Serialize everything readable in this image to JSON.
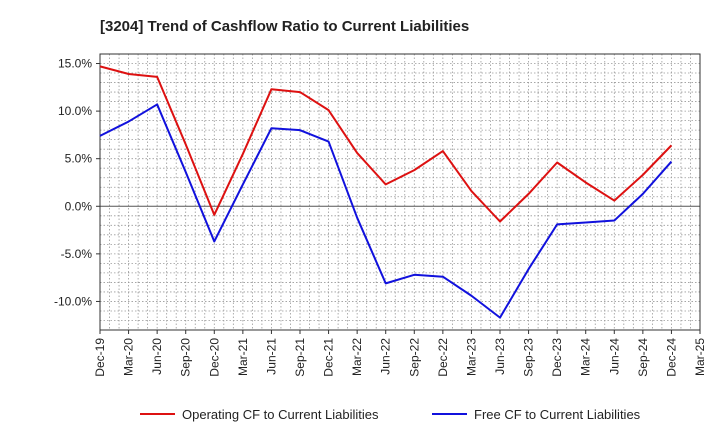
{
  "chart_data": {
    "type": "line",
    "title": "[3204]  Trend of Cashflow Ratio to Current Liabilities",
    "xlabel": "",
    "ylabel": "",
    "categories": [
      "Dec-19",
      "Mar-20",
      "Jun-20",
      "Sep-20",
      "Dec-20",
      "Mar-21",
      "Jun-21",
      "Sep-21",
      "Dec-21",
      "Mar-22",
      "Jun-22",
      "Sep-22",
      "Dec-22",
      "Mar-23",
      "Jun-23",
      "Sep-23",
      "Dec-23",
      "Mar-24",
      "Jun-24",
      "Sep-24",
      "Dec-24",
      "Mar-25"
    ],
    "ylim": [
      -13.0,
      16.0
    ],
    "yticks": [
      15.0,
      10.0,
      5.0,
      0.0,
      -5.0,
      -10.0
    ],
    "ytick_labels": [
      "15.0%",
      "10.0%",
      "5.0%",
      "0.0%",
      "-5.0%",
      "-10.0%"
    ],
    "grid": true,
    "legend_position": "bottom",
    "series": [
      {
        "name": "Operating CF to Current Liabilities",
        "color": "#dd1111",
        "values": [
          14.7,
          13.9,
          13.6,
          6.5,
          -0.9,
          5.5,
          12.3,
          12.0,
          10.1,
          5.6,
          2.3,
          3.8,
          5.8,
          1.6,
          -1.6,
          1.3,
          4.6,
          2.5,
          0.6,
          3.3,
          6.4,
          null
        ]
      },
      {
        "name": "Free CF to Current Liabilities",
        "color": "#1111dd",
        "values": [
          7.4,
          8.9,
          10.7,
          3.6,
          -3.7,
          2.3,
          8.2,
          8.0,
          6.8,
          -1.2,
          -8.1,
          -7.2,
          -7.4,
          -9.4,
          -11.7,
          -6.6,
          -1.9,
          -1.7,
          -1.5,
          1.3,
          4.7,
          null
        ]
      }
    ]
  }
}
